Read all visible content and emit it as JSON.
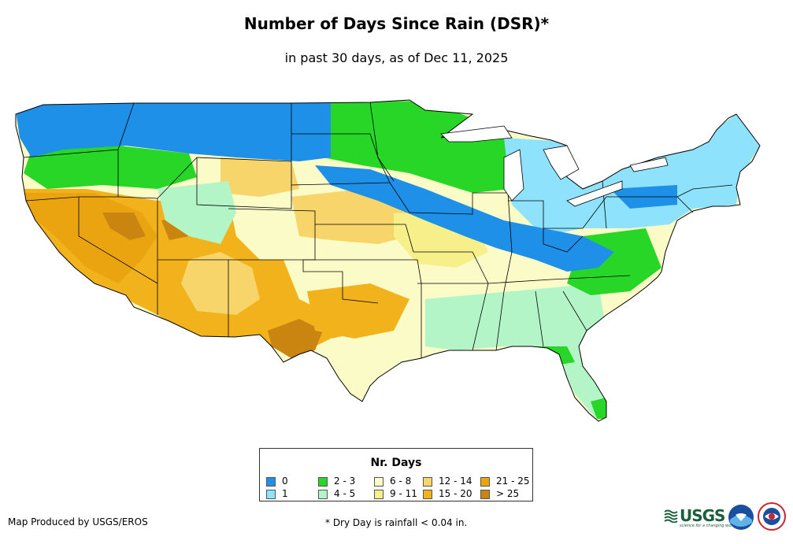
{
  "header": {
    "title": "Number of Days Since Rain (DSR)*",
    "subtitle": "in past 30 days, as of Dec 11, 2025"
  },
  "legend": {
    "title": "Nr. Days",
    "items": [
      {
        "label": "0",
        "color": "#1e90e8"
      },
      {
        "label": "1",
        "color": "#8fe2fb"
      },
      {
        "label": "2 - 3",
        "color": "#27d627"
      },
      {
        "label": "4 - 5",
        "color": "#b4f5c8"
      },
      {
        "label": "6 - 8",
        "color": "#fbfbc8"
      },
      {
        "label": "9 - 11",
        "color": "#f7ef8a"
      },
      {
        "label": "12 - 14",
        "color": "#f7d56a"
      },
      {
        "label": "15 - 20",
        "color": "#f1b21c"
      },
      {
        "label": "21 - 25",
        "color": "#eaa40f"
      },
      {
        "label": "> 25",
        "color": "#c98510"
      }
    ]
  },
  "footer": {
    "credit": "Map Produced by USGS/EROS",
    "footnote": "* Dry Day is rainfall < 0.04 in."
  },
  "logos": {
    "usgs": "USGS",
    "usgs_tagline": "science for a changing world",
    "noaa": "NOAA",
    "nws": "NWS"
  }
}
